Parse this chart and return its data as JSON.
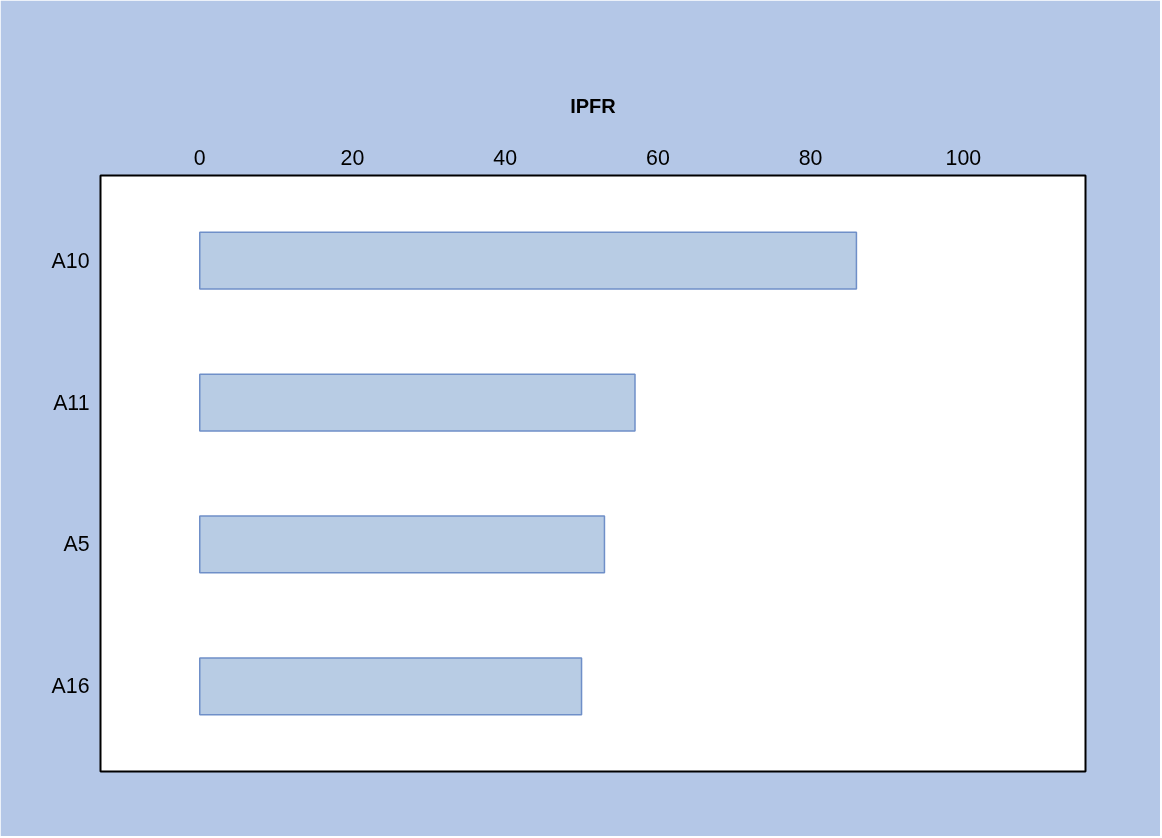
{
  "chart_data": {
    "type": "bar",
    "orientation": "horizontal",
    "title": "IPFR",
    "categories": [
      "A10",
      "A11",
      "A5",
      "A16"
    ],
    "values": [
      86,
      57,
      53,
      50
    ],
    "color": "#b8cce4",
    "xlim": [
      -13,
      116
    ],
    "xticks": [
      0,
      20,
      40,
      60,
      80,
      100
    ],
    "grid": false
  }
}
